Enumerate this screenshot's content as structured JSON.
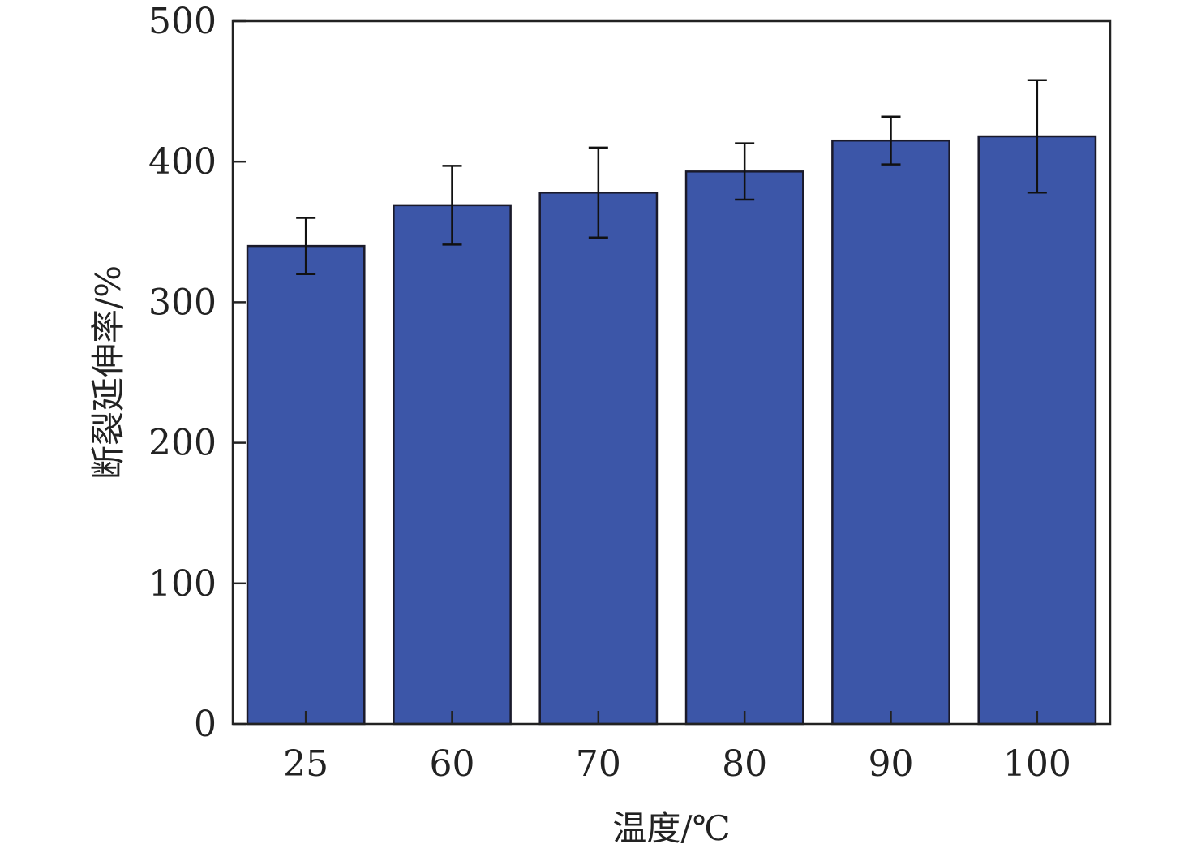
{
  "chart_data": {
    "type": "bar",
    "title": "",
    "xlabel": "温度/℃",
    "ylabel": "断裂延伸率/%",
    "categories": [
      "25",
      "60",
      "70",
      "80",
      "90",
      "100"
    ],
    "series": [
      {
        "values": [
          340,
          369,
          378,
          393,
          415,
          418
        ],
        "errors": [
          20,
          28,
          32,
          20,
          17,
          40
        ],
        "color": "#3c56a8"
      }
    ],
    "ylim": [
      0,
      500
    ],
    "yticks": [
      "0",
      "100",
      "200",
      "300",
      "400",
      "500"
    ],
    "grid": false,
    "legend": "none"
  }
}
